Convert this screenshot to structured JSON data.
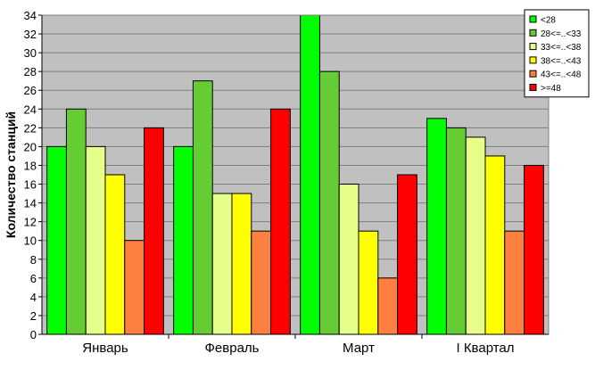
{
  "chart_data": {
    "type": "bar",
    "title": "",
    "xlabel": "",
    "ylabel": "Количество станций",
    "ylim": [
      0,
      34
    ],
    "ytick_step": 2,
    "grid": true,
    "plot_background": "#c0c0c0",
    "legend_position": "top-right",
    "categories": [
      "Январь",
      "Февраль",
      "Март",
      "I Квартал"
    ],
    "series": [
      {
        "name": "<28",
        "color": "#00ff00",
        "values": [
          20,
          20,
          34,
          23
        ]
      },
      {
        "name": "28<=..<33",
        "color": "#66cc33",
        "values": [
          24,
          27,
          28,
          22
        ]
      },
      {
        "name": "33<=..<38",
        "color": "#e5ff88",
        "values": [
          20,
          15,
          16,
          21
        ]
      },
      {
        "name": "38<=..<43",
        "color": "#ffff00",
        "values": [
          17,
          15,
          11,
          19
        ]
      },
      {
        "name": "43<=..<48",
        "color": "#ff7f40",
        "values": [
          10,
          11,
          6,
          11
        ]
      },
      {
        "name": ">=48",
        "color": "#ff0000",
        "values": [
          22,
          24,
          17,
          18
        ]
      }
    ]
  }
}
